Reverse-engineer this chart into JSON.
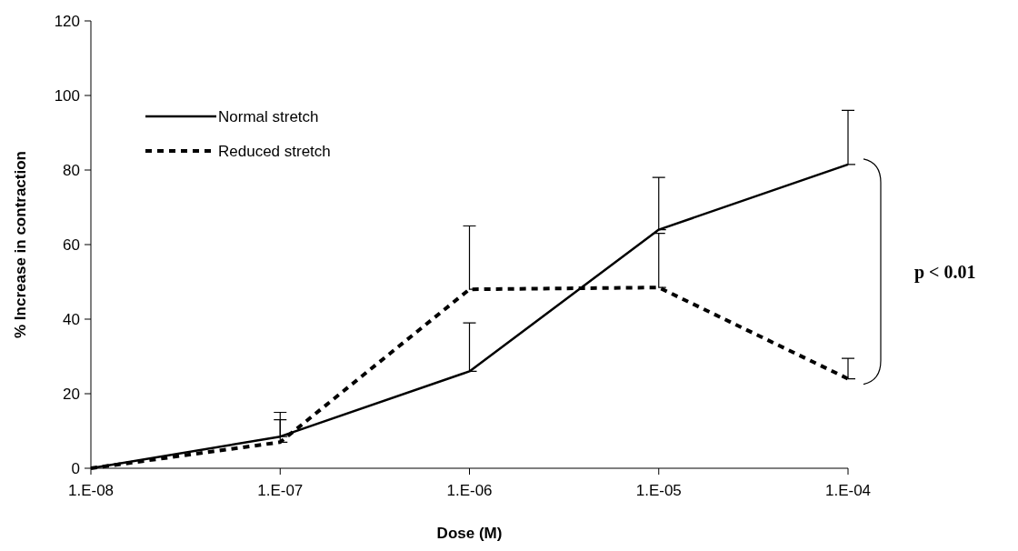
{
  "chart_data": {
    "type": "line",
    "xlabel": "Dose (M)",
    "ylabel": "% Increase in contraction",
    "categories": [
      "1.E-08",
      "1.E-07",
      "1.E-06",
      "1.E-05",
      "1.E-04"
    ],
    "ylim": [
      0,
      120
    ],
    "yticks": [
      0,
      20,
      40,
      60,
      80,
      100,
      120
    ],
    "grid": false,
    "legend": "top left",
    "marker": "none",
    "series": [
      {
        "name": "Normal stretch",
        "color": "#000000",
        "line_style": "solid",
        "values": [
          0,
          8.5,
          26,
          64,
          81.5
        ],
        "errors": [
          null,
          [
            8.5,
            15
          ],
          [
            26,
            39
          ],
          [
            64,
            78
          ],
          [
            81.5,
            96
          ]
        ]
      },
      {
        "name": "Reduced stretch",
        "color": "#000000",
        "line_style": "dashed",
        "values": [
          0,
          7,
          48,
          48.5,
          24
        ],
        "errors": [
          null,
          [
            7,
            13
          ],
          [
            48,
            65
          ],
          [
            48.5,
            63
          ],
          [
            24,
            29.5
          ]
        ]
      }
    ],
    "annotations": [
      "p < 0.01"
    ]
  }
}
